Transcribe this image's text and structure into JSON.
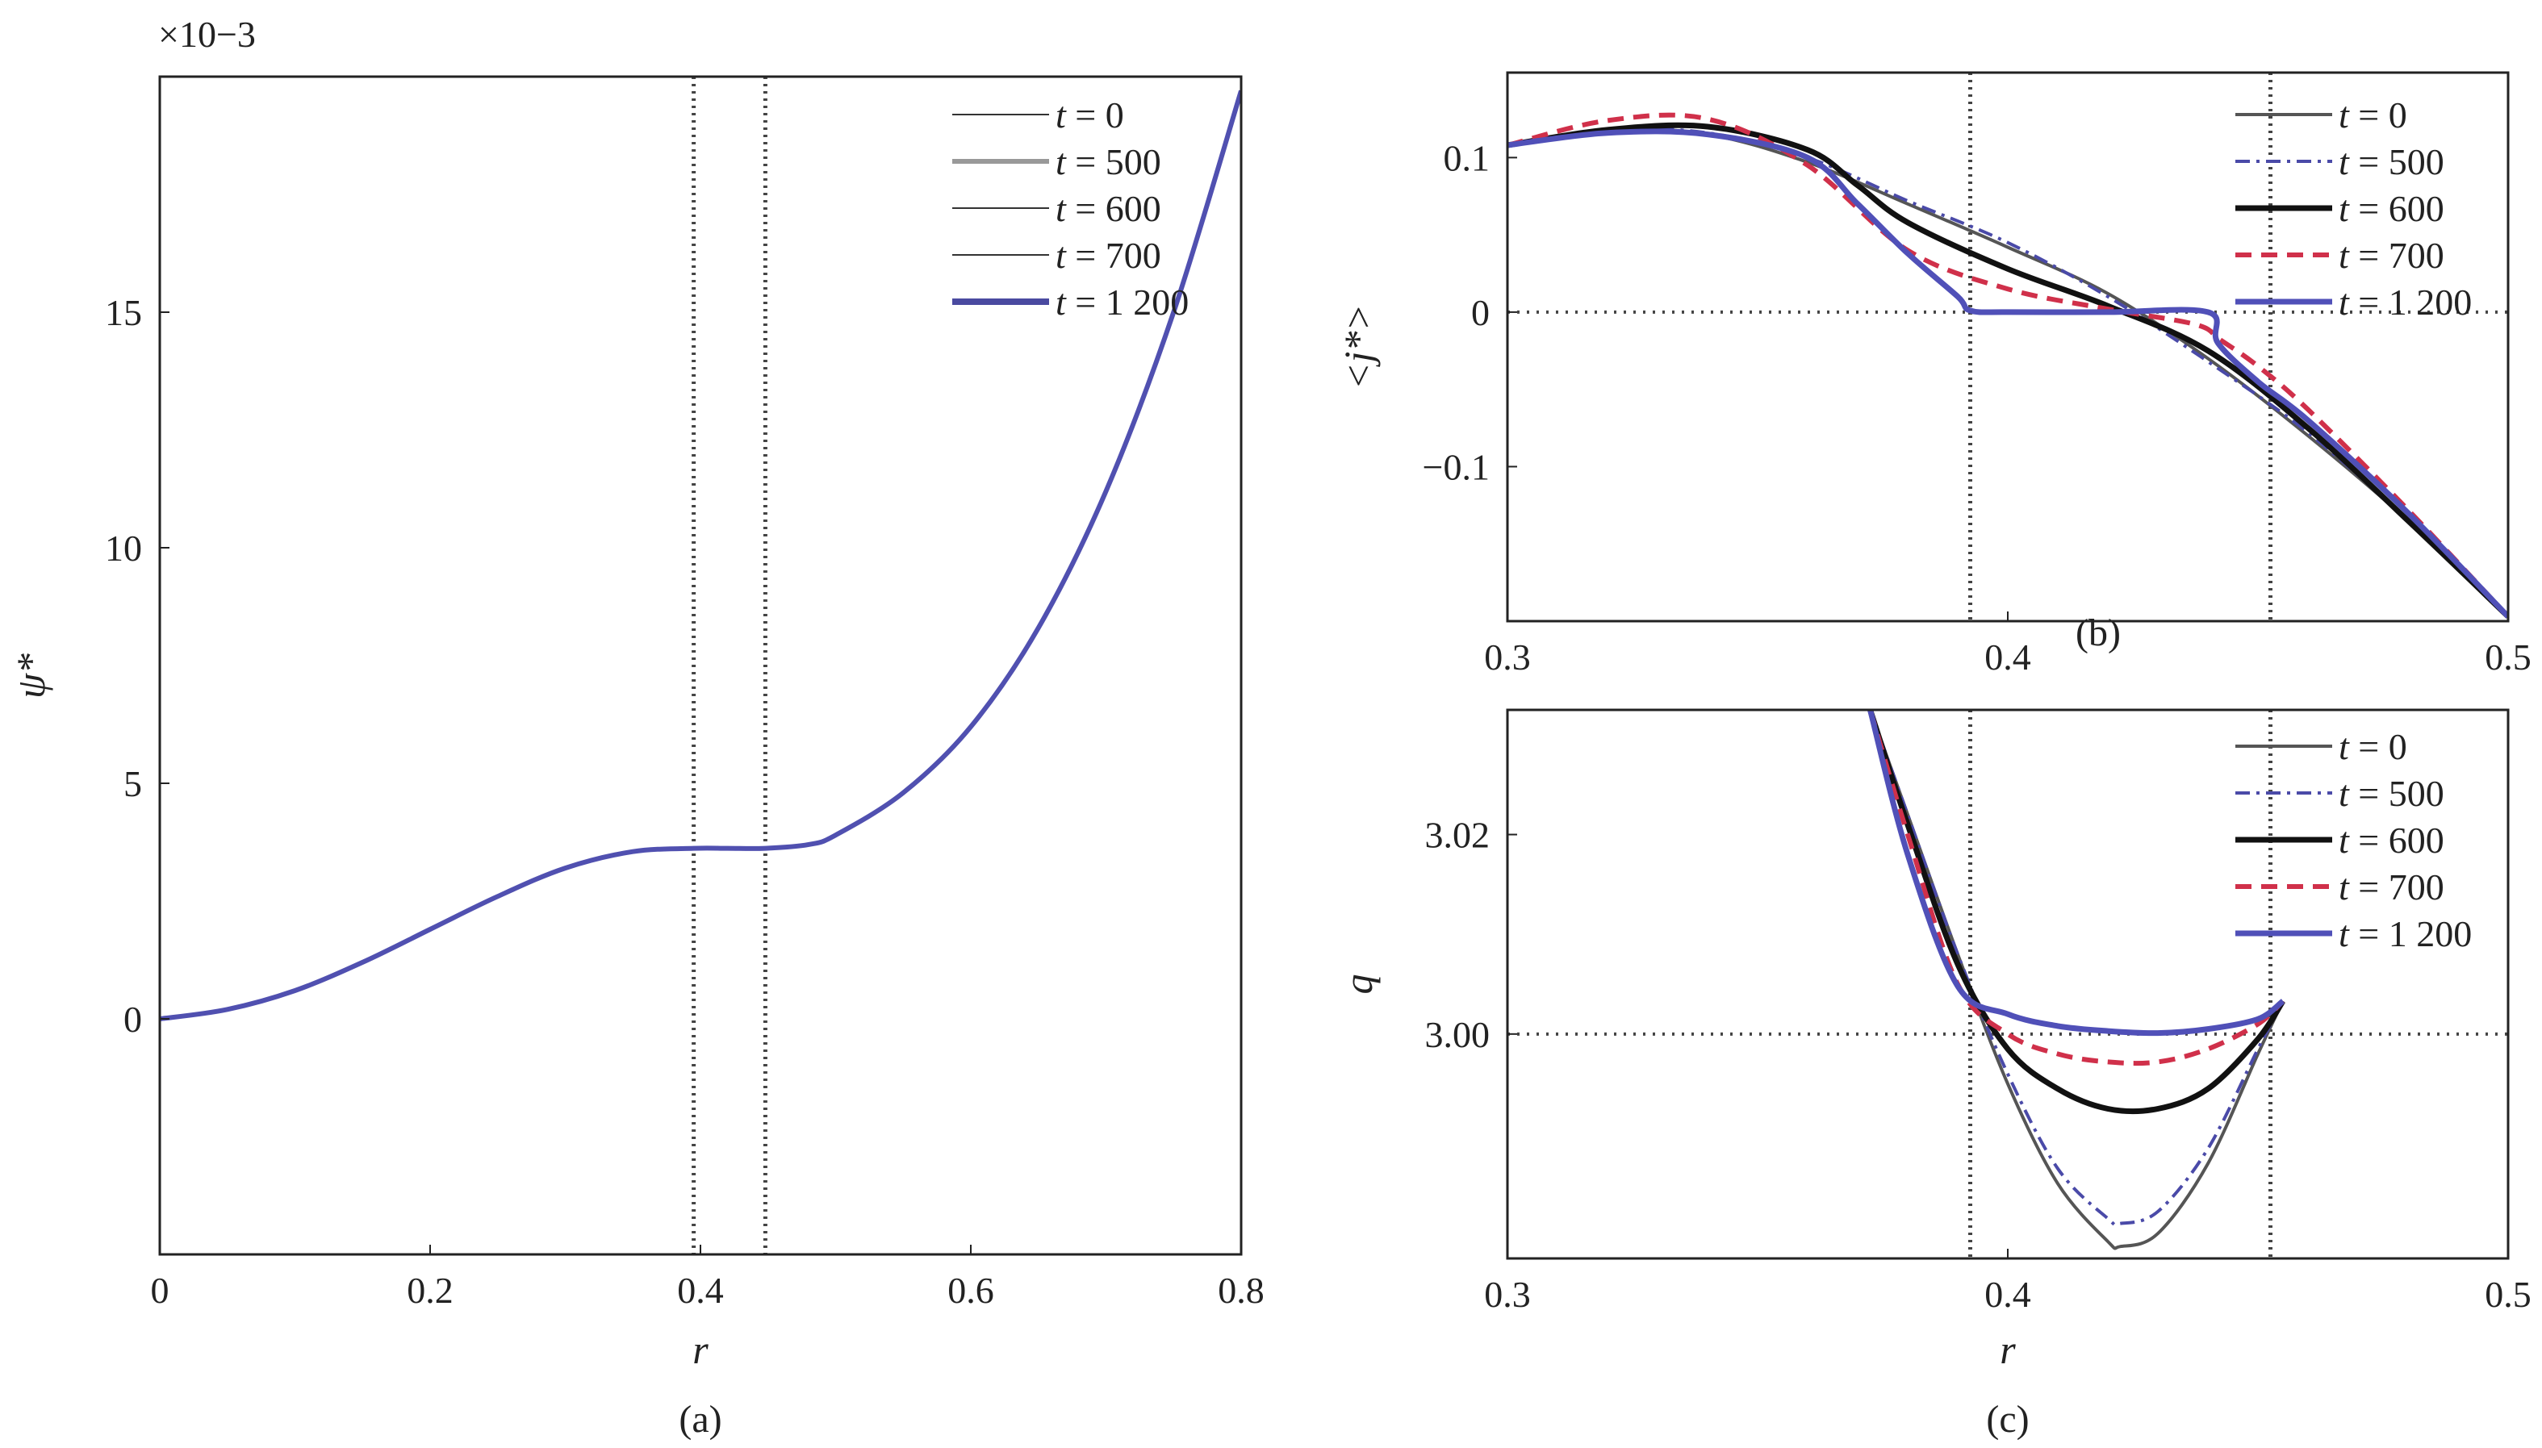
{
  "panels": {
    "a": {
      "caption": "(a)",
      "xlabel": "r",
      "ylabel": "ψ*",
      "exponent": "×10−3",
      "xlim": [
        0,
        0.8
      ],
      "ylim": [
        -0.005,
        0.02
      ],
      "xticks": [
        0,
        0.2,
        0.4,
        0.6,
        0.8
      ],
      "xtick_labels": [
        "0",
        "0.2",
        "0.4",
        "0.6",
        "0.8"
      ],
      "yticks": [
        0,
        0.005,
        0.01,
        0.015
      ],
      "ytick_labels": [
        "0",
        "5",
        "10",
        "15"
      ],
      "vlines": [
        0.395,
        0.448
      ]
    },
    "b": {
      "caption": "(b)",
      "xlabel": "",
      "ylabel": "<j*>",
      "xlim": [
        0.3,
        0.5
      ],
      "ylim": [
        -0.2,
        0.155
      ],
      "xticks": [
        0.3,
        0.4,
        0.5
      ],
      "xtick_labels": [
        "0.3",
        "0.4",
        "0.5"
      ],
      "yticks": [
        0.1,
        0,
        -0.1
      ],
      "ytick_labels": [
        "0.1",
        "0",
        "−0.1"
      ],
      "vlines": [
        0.3925,
        0.4525
      ],
      "hline": 0
    },
    "c": {
      "caption": "(c)",
      "xlabel": "r",
      "ylabel": "q",
      "xlim": [
        0.3,
        0.5
      ],
      "ylim": [
        2.9775,
        3.0325
      ],
      "xticks": [
        0.3,
        0.4,
        0.5
      ],
      "xtick_labels": [
        "0.3",
        "0.4",
        "0.5"
      ],
      "yticks": [
        3.02,
        3.0
      ],
      "ytick_labels": [
        "3.02",
        "3.00"
      ],
      "vlines": [
        0.3925,
        0.4525
      ],
      "hline": 3.0
    }
  },
  "legend": {
    "a": [
      {
        "t": "t",
        "rest": " = 0",
        "color": "#333333",
        "width": 2,
        "dash": ""
      },
      {
        "t": "t",
        "rest": " = 500",
        "color": "#999999",
        "width": 6,
        "dash": ""
      },
      {
        "t": "t",
        "rest": " = 600",
        "color": "#333333",
        "width": 2,
        "dash": ""
      },
      {
        "t": "t",
        "rest": " = 700",
        "color": "#333333",
        "width": 2,
        "dash": ""
      },
      {
        "t": "t",
        "rest": " = 1 200",
        "color": "#4a4aa0",
        "width": 8,
        "dash": ""
      }
    ],
    "bc": [
      {
        "t": "t",
        "rest": " = 0",
        "color": "#555555",
        "width": 4,
        "dash": ""
      },
      {
        "t": "t",
        "rest": " = 500",
        "color": "#4a4aa8",
        "width": 4,
        "dash": "18 8 4 8"
      },
      {
        "t": "t",
        "rest": " = 600",
        "color": "#111111",
        "width": 7,
        "dash": ""
      },
      {
        "t": "t",
        "rest": " = 700",
        "color": "#d0304a",
        "width": 6,
        "dash": "20 12"
      },
      {
        "t": "t",
        "rest": " = 1 200",
        "color": "#5050b8",
        "width": 7,
        "dash": ""
      }
    ]
  },
  "chart_data": [
    {
      "type": "line",
      "panel": "a",
      "xlabel": "r",
      "ylabel": "ψ*",
      "xlim": [
        0,
        0.8
      ],
      "ylim": [
        -0.005,
        0.02
      ],
      "series": [
        {
          "name": "t = 1 200",
          "x": [
            0,
            0.05,
            0.1,
            0.15,
            0.2,
            0.25,
            0.3,
            0.35,
            0.395,
            0.42,
            0.448,
            0.48,
            0.5,
            0.55,
            0.6,
            0.65,
            0.7,
            0.75,
            0.8
          ],
          "y": [
            0,
            0.0002,
            0.0006,
            0.0012,
            0.0019,
            0.0026,
            0.0032,
            0.00355,
            0.00362,
            0.00362,
            0.00362,
            0.0037,
            0.0039,
            0.0048,
            0.0062,
            0.0083,
            0.0112,
            0.015,
            0.0197
          ]
        }
      ]
    },
    {
      "type": "line",
      "panel": "b",
      "xlabel": "",
      "ylabel": "<j*>",
      "xlim": [
        0.3,
        0.5
      ],
      "ylim": [
        -0.2,
        0.155
      ],
      "series": [
        {
          "name": "t = 0",
          "x": [
            0.3,
            0.32,
            0.34,
            0.36,
            0.38,
            0.4,
            0.42,
            0.44,
            0.46,
            0.48,
            0.5
          ],
          "y": [
            0.108,
            0.118,
            0.115,
            0.097,
            0.07,
            0.042,
            0.012,
            -0.03,
            -0.08,
            -0.135,
            -0.197
          ]
        },
        {
          "name": "t = 500",
          "x": [
            0.3,
            0.32,
            0.34,
            0.36,
            0.38,
            0.4,
            0.42,
            0.44,
            0.46,
            0.48,
            0.5
          ],
          "y": [
            0.108,
            0.118,
            0.116,
            0.1,
            0.072,
            0.045,
            0.01,
            -0.032,
            -0.078,
            -0.135,
            -0.197
          ]
        },
        {
          "name": "t = 600",
          "x": [
            0.3,
            0.32,
            0.34,
            0.36,
            0.37,
            0.38,
            0.4,
            0.42,
            0.44,
            0.46,
            0.48,
            0.5
          ],
          "y": [
            0.108,
            0.118,
            0.12,
            0.105,
            0.082,
            0.058,
            0.028,
            0.004,
            -0.025,
            -0.075,
            -0.135,
            -0.197
          ]
        },
        {
          "name": "t = 700",
          "x": [
            0.3,
            0.32,
            0.34,
            0.36,
            0.38,
            0.4,
            0.42,
            0.4375,
            0.4425,
            0.45,
            0.46,
            0.48,
            0.5
          ],
          "y": [
            0.108,
            0.124,
            0.125,
            0.095,
            0.04,
            0.015,
            0.002,
            -0.008,
            -0.018,
            -0.035,
            -0.063,
            -0.128,
            -0.197
          ]
        },
        {
          "name": "t = 1 200",
          "x": [
            0.3,
            0.32,
            0.34,
            0.36,
            0.37,
            0.38,
            0.39,
            0.3925,
            0.4,
            0.42,
            0.44,
            0.442,
            0.45,
            0.46,
            0.48,
            0.5
          ],
          "y": [
            0.108,
            0.116,
            0.115,
            0.1,
            0.07,
            0.038,
            0.01,
            0.001,
            0,
            0,
            0,
            -0.02,
            -0.045,
            -0.07,
            -0.13,
            -0.197
          ]
        }
      ]
    },
    {
      "type": "line",
      "panel": "c",
      "xlabel": "r",
      "ylabel": "q",
      "xlim": [
        0.3,
        0.5
      ],
      "ylim": [
        2.9775,
        3.0325
      ],
      "series": [
        {
          "name": "t = 0",
          "x": [
            0.3725,
            0.38,
            0.39,
            0.4,
            0.41,
            0.42,
            0.4225,
            0.43,
            0.44,
            0.45,
            0.455
          ],
          "y": [
            3.0325,
            3.022,
            3.008,
            2.995,
            2.985,
            2.9792,
            2.9787,
            2.98,
            2.987,
            2.998,
            3.0033
          ]
        },
        {
          "name": "t = 500",
          "x": [
            0.3725,
            0.38,
            0.39,
            0.4,
            0.41,
            0.42,
            0.4225,
            0.43,
            0.44,
            0.45,
            0.455
          ],
          "y": [
            3.0325,
            3.022,
            3.008,
            2.996,
            2.9865,
            2.9815,
            2.981,
            2.9822,
            2.9885,
            2.9985,
            3.0033
          ]
        },
        {
          "name": "t = 600",
          "x": [
            0.3725,
            0.38,
            0.39,
            0.4,
            0.41,
            0.42,
            0.43,
            0.44,
            0.45,
            0.455
          ],
          "y": [
            3.0325,
            3.021,
            3.007,
            2.9985,
            2.9945,
            2.9925,
            2.9925,
            2.9945,
            2.9995,
            3.0033
          ]
        },
        {
          "name": "t = 700",
          "x": [
            0.3725,
            0.38,
            0.39,
            0.4,
            0.41,
            0.42,
            0.43,
            0.44,
            0.45,
            0.455
          ],
          "y": [
            3.0325,
            3.02,
            3.005,
            3.0,
            2.998,
            2.9972,
            2.9972,
            2.9985,
            3.001,
            3.0033
          ]
        },
        {
          "name": "t = 1 200",
          "x": [
            0.3725,
            0.38,
            0.39,
            0.4,
            0.41,
            0.42,
            0.43,
            0.44,
            0.45,
            0.455
          ],
          "y": [
            3.0325,
            3.018,
            3.0048,
            3.002,
            3.0008,
            3.0003,
            3.0001,
            3.0005,
            3.0015,
            3.0033
          ]
        }
      ]
    }
  ]
}
